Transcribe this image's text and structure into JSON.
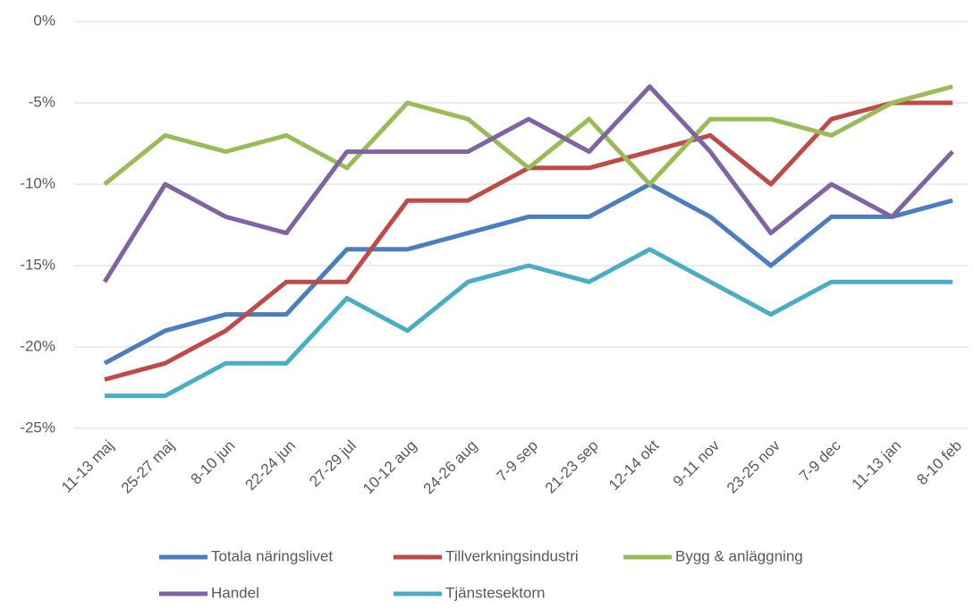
{
  "chart_data": {
    "type": "line",
    "categories": [
      "11-13 maj",
      "25-27 maj",
      "8-10 jun",
      "22-24 jun",
      "27-29 jul",
      "10-12 aug",
      "24-26 aug",
      "7-9 sep",
      "21-23 sep",
      "12-14 okt",
      "9-11 nov",
      "23-25 nov",
      "7-9 dec",
      "11-13 jan",
      "8-10 feb"
    ],
    "series": [
      {
        "name": "Totala näringslivet",
        "color": "#4a7ebf",
        "values": [
          -21,
          -19,
          -18,
          -18,
          -14,
          -14,
          -13,
          -12,
          -12,
          -10,
          -12,
          -15,
          -12,
          -12,
          -11
        ]
      },
      {
        "name": "Tillverkningsindustri",
        "color": "#be4b48",
        "values": [
          -22,
          -21,
          -19,
          -16,
          -16,
          -11,
          -11,
          -9,
          -9,
          -8,
          -7,
          -10,
          -6,
          -5,
          -5
        ]
      },
      {
        "name": "Bygg & anläggning",
        "color": "#9bbb59",
        "values": [
          -10,
          -7,
          -8,
          -7,
          -9,
          -5,
          -6,
          -9,
          -6,
          -10,
          -6,
          -6,
          -7,
          -5,
          -4
        ]
      },
      {
        "name": "Handel",
        "color": "#7f63a2",
        "values": [
          -16,
          -10,
          -12,
          -13,
          -8,
          -8,
          -8,
          -6,
          -8,
          -4,
          -8,
          -13,
          -10,
          -12,
          -8
        ]
      },
      {
        "name": "Tjänstesektorn",
        "color": "#4bacc6",
        "values": [
          -23,
          -23,
          -21,
          -21,
          -17,
          -19,
          -16,
          -15,
          -16,
          -14,
          -16,
          -18,
          -16,
          -16,
          -16
        ]
      }
    ],
    "ylim": [
      -25,
      0
    ],
    "yticks": [
      {
        "value": 0,
        "label": "0%"
      },
      {
        "value": -5,
        "label": "-5%"
      },
      {
        "value": -10,
        "label": "-10%"
      },
      {
        "value": -15,
        "label": "-15%"
      },
      {
        "value": -20,
        "label": "-20%"
      },
      {
        "value": -25,
        "label": "-25%"
      }
    ],
    "grid": true,
    "legend": "bottom"
  }
}
